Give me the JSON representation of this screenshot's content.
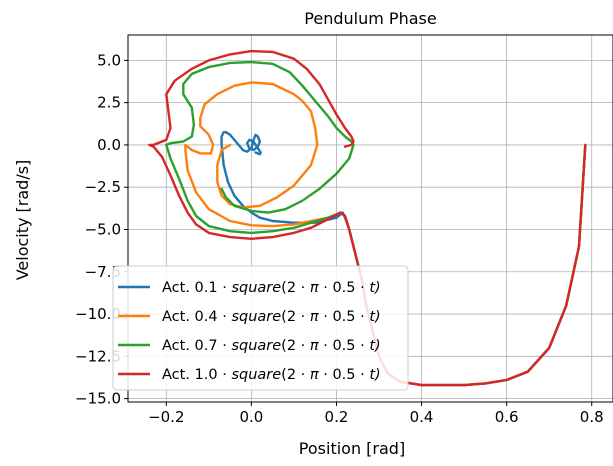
{
  "chart_data": {
    "type": "line",
    "title": "Pendulum Phase",
    "xlabel": "Position [rad]",
    "ylabel": "Velocity [rad/s]",
    "xlim": [
      -0.29,
      0.85
    ],
    "ylim": [
      -15.2,
      6.5
    ],
    "xticks": [
      -0.2,
      0.0,
      0.2,
      0.4,
      0.6,
      0.8
    ],
    "xtick_labels": [
      "−0.2",
      "0.0",
      "0.2",
      "0.4",
      "0.6",
      "0.8"
    ],
    "yticks": [
      5.0,
      2.5,
      0.0,
      -2.5,
      -5.0,
      -7.5,
      -10.0,
      -12.5,
      -15.0
    ],
    "ytick_labels": [
      "5.0",
      "2.5",
      "0.0",
      "−2.5",
      "−5.0",
      "−7.5",
      "−10.0",
      "−12.5",
      "−15.0"
    ],
    "grid": true,
    "legend_position": "lower-left",
    "series": [
      {
        "name": "Act. 0.1·square(2·π·0.5·t)",
        "legend_prefix": "Act. 0.1",
        "color": "#1f77b4",
        "x": [
          0.785,
          0.78,
          0.77,
          0.74,
          0.7,
          0.65,
          0.6,
          0.55,
          0.5,
          0.45,
          0.4,
          0.35,
          0.32,
          0.3,
          0.285,
          0.27,
          0.26,
          0.25,
          0.24,
          0.23,
          0.22,
          0.215,
          0.2,
          0.15,
          0.1,
          0.05,
          0.02,
          0.0,
          -0.02,
          -0.04,
          -0.055,
          -0.065,
          -0.07,
          -0.07,
          -0.065,
          -0.06,
          -0.05,
          -0.04,
          -0.03,
          -0.02,
          -0.01,
          0.0,
          0.005,
          0.01,
          0.015,
          0.02,
          0.015,
          0.005,
          -0.005,
          -0.01,
          -0.005,
          0.005,
          0.015,
          0.022,
          0.02,
          0.01
        ],
        "y": [
          0.0,
          -2.0,
          -6.0,
          -9.5,
          -12.0,
          -13.4,
          -13.9,
          -14.1,
          -14.2,
          -14.2,
          -14.2,
          -14.0,
          -13.5,
          -12.5,
          -11.0,
          -9.5,
          -8.0,
          -7.0,
          -6.0,
          -5.0,
          -4.3,
          -4.0,
          -4.3,
          -4.6,
          -4.6,
          -4.5,
          -4.3,
          -4.0,
          -3.6,
          -3.0,
          -2.2,
          -1.2,
          0.0,
          0.5,
          0.75,
          0.75,
          0.6,
          0.3,
          0.0,
          -0.3,
          -0.4,
          -0.2,
          0.3,
          0.6,
          0.5,
          0.2,
          -0.1,
          -0.3,
          -0.2,
          0.1,
          0.3,
          0.2,
          -0.2,
          -0.45,
          -0.55,
          -0.45
        ]
      },
      {
        "name": "Act. 0.4·square(2·π·0.5·t)",
        "legend_prefix": "Act. 0.4",
        "color": "#ff7f0e",
        "x": [
          0.785,
          0.78,
          0.77,
          0.74,
          0.7,
          0.65,
          0.6,
          0.55,
          0.5,
          0.45,
          0.4,
          0.35,
          0.32,
          0.3,
          0.285,
          0.27,
          0.26,
          0.25,
          0.24,
          0.23,
          0.22,
          0.21,
          0.18,
          0.14,
          0.1,
          0.05,
          0.0,
          -0.05,
          -0.1,
          -0.13,
          -0.15,
          -0.155,
          -0.155,
          -0.14,
          -0.12,
          -0.095,
          -0.09,
          -0.1,
          -0.12,
          -0.12,
          -0.11,
          -0.08,
          -0.04,
          0.0,
          0.05,
          0.1,
          0.12,
          0.14,
          0.15,
          0.155,
          0.14,
          0.1,
          0.06,
          0.02,
          -0.02,
          -0.05,
          -0.07,
          -0.08,
          -0.08,
          -0.07,
          -0.05
        ],
        "y": [
          0.0,
          -2.0,
          -6.0,
          -9.5,
          -12.0,
          -13.4,
          -13.9,
          -14.1,
          -14.2,
          -14.2,
          -14.2,
          -14.0,
          -13.5,
          -12.5,
          -11.0,
          -9.5,
          -8.0,
          -7.0,
          -6.0,
          -5.0,
          -4.2,
          -4.0,
          -4.3,
          -4.5,
          -4.7,
          -4.8,
          -4.75,
          -4.5,
          -3.8,
          -2.8,
          -1.5,
          -0.3,
          0.0,
          -0.3,
          -0.5,
          -0.5,
          0.0,
          0.6,
          1.1,
          1.6,
          2.4,
          3.0,
          3.5,
          3.7,
          3.6,
          3.0,
          2.6,
          2.0,
          1.0,
          0.0,
          -1.2,
          -2.4,
          -3.1,
          -3.6,
          -3.7,
          -3.5,
          -3.0,
          -2.2,
          -1.2,
          -0.3,
          0.0
        ]
      },
      {
        "name": "Act. 0.7·square(2·π·0.5·t)",
        "legend_prefix": "Act. 0.7",
        "color": "#2ca02c",
        "x": [
          0.785,
          0.78,
          0.77,
          0.74,
          0.7,
          0.65,
          0.6,
          0.55,
          0.5,
          0.45,
          0.4,
          0.35,
          0.32,
          0.3,
          0.285,
          0.27,
          0.26,
          0.25,
          0.24,
          0.23,
          0.22,
          0.21,
          0.18,
          0.14,
          0.1,
          0.05,
          0.0,
          -0.05,
          -0.1,
          -0.13,
          -0.15,
          -0.17,
          -0.19,
          -0.2,
          -0.19,
          -0.16,
          -0.14,
          -0.135,
          -0.14,
          -0.16,
          -0.16,
          -0.14,
          -0.1,
          -0.05,
          0.0,
          0.05,
          0.09,
          0.12,
          0.15,
          0.18,
          0.2,
          0.22,
          0.235,
          0.24,
          0.23,
          0.2,
          0.16,
          0.12,
          0.08,
          0.04,
          0.0,
          -0.04,
          -0.06,
          -0.07
        ],
        "y": [
          0.0,
          -2.0,
          -6.0,
          -9.5,
          -12.0,
          -13.4,
          -13.9,
          -14.1,
          -14.2,
          -14.2,
          -14.2,
          -14.0,
          -13.5,
          -12.5,
          -11.0,
          -9.5,
          -8.0,
          -7.0,
          -6.0,
          -5.0,
          -4.2,
          -4.0,
          -4.3,
          -4.6,
          -4.9,
          -5.1,
          -5.2,
          -5.1,
          -4.8,
          -4.2,
          -3.3,
          -2.0,
          -0.8,
          0.0,
          0.1,
          0.2,
          0.5,
          1.2,
          2.2,
          3.0,
          3.6,
          4.2,
          4.6,
          4.85,
          4.9,
          4.8,
          4.3,
          3.5,
          2.6,
          1.7,
          1.0,
          0.5,
          0.2,
          0.0,
          -0.8,
          -1.7,
          -2.6,
          -3.3,
          -3.8,
          -4.0,
          -3.9,
          -3.6,
          -3.1,
          -2.6
        ]
      },
      {
        "name": "Act. 1.0·square(2·π·0.5·t)",
        "legend_prefix": "Act. 1.0",
        "color": "#d62728",
        "x": [
          0.785,
          0.78,
          0.77,
          0.74,
          0.7,
          0.65,
          0.6,
          0.55,
          0.5,
          0.45,
          0.4,
          0.35,
          0.32,
          0.3,
          0.285,
          0.27,
          0.26,
          0.25,
          0.24,
          0.23,
          0.22,
          0.21,
          0.18,
          0.14,
          0.1,
          0.05,
          0.0,
          -0.05,
          -0.1,
          -0.13,
          -0.15,
          -0.17,
          -0.19,
          -0.21,
          -0.23,
          -0.24,
          -0.23,
          -0.2,
          -0.19,
          -0.195,
          -0.2,
          -0.18,
          -0.14,
          -0.1,
          -0.05,
          0.0,
          0.05,
          0.1,
          0.13,
          0.16,
          0.18,
          0.2,
          0.22,
          0.235,
          0.24,
          0.235,
          0.22
        ],
        "y": [
          0.0,
          -2.0,
          -6.0,
          -9.5,
          -12.0,
          -13.4,
          -13.9,
          -14.1,
          -14.2,
          -14.2,
          -14.2,
          -14.0,
          -13.5,
          -12.5,
          -11.0,
          -9.5,
          -8.0,
          -7.0,
          -6.0,
          -5.0,
          -4.2,
          -4.0,
          -4.4,
          -4.9,
          -5.2,
          -5.45,
          -5.55,
          -5.45,
          -5.2,
          -4.7,
          -4.0,
          -3.0,
          -1.8,
          -0.7,
          -0.1,
          0.0,
          0.0,
          0.3,
          1.0,
          2.0,
          3.0,
          3.8,
          4.5,
          5.0,
          5.35,
          5.55,
          5.5,
          5.1,
          4.5,
          3.6,
          2.7,
          1.8,
          1.0,
          0.5,
          0.2,
          0.0,
          -0.1
        ]
      }
    ]
  },
  "legend": {
    "formula_func": "square",
    "formula_open": "(2",
    "formula_pi": "π",
    "formula_half": "0.5",
    "formula_t": "t)"
  }
}
